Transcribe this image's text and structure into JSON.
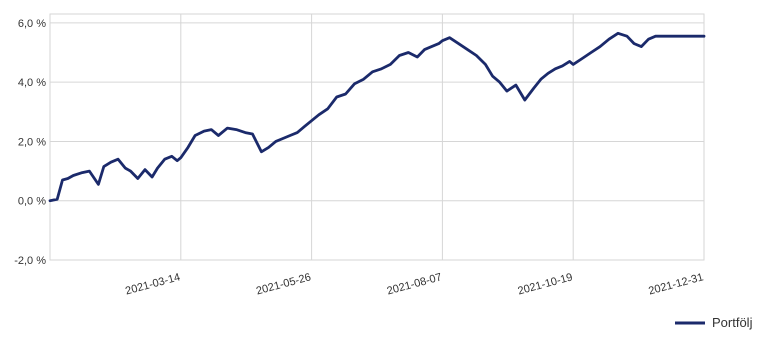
{
  "chart_data": {
    "type": "line",
    "grid": true,
    "legend_position": "bottom-right",
    "y_ticks": [
      {
        "value": 6,
        "label": "6,0 %"
      },
      {
        "value": 4,
        "label": "4,0 %"
      },
      {
        "value": 2,
        "label": "2,0 %"
      },
      {
        "value": 0,
        "label": "0,0 %"
      },
      {
        "value": -2,
        "label": "-2,0 %"
      }
    ],
    "x_ticks": [
      {
        "value": "2021-03-14",
        "label": "2021-03-14"
      },
      {
        "value": "2021-05-26",
        "label": "2021-05-26"
      },
      {
        "value": "2021-08-07",
        "label": "2021-08-07"
      },
      {
        "value": "2021-10-19",
        "label": "2021-10-19"
      },
      {
        "value": "2021-12-31",
        "label": "2021-12-31"
      }
    ],
    "xlim": [
      "2020-12-31",
      "2021-12-31"
    ],
    "ylim": [
      -2,
      6.3
    ],
    "series": [
      {
        "name": "Portfölj",
        "color": "#1b2a6b",
        "x": [
          "2020-12-31",
          "2021-01-04",
          "2021-01-07",
          "2021-01-10",
          "2021-01-13",
          "2021-01-18",
          "2021-01-22",
          "2021-01-27",
          "2021-01-30",
          "2021-02-03",
          "2021-02-07",
          "2021-02-11",
          "2021-02-14",
          "2021-02-18",
          "2021-02-22",
          "2021-02-26",
          "2021-03-01",
          "2021-03-05",
          "2021-03-09",
          "2021-03-12",
          "2021-03-14",
          "2021-03-18",
          "2021-03-22",
          "2021-03-27",
          "2021-03-31",
          "2021-04-04",
          "2021-04-09",
          "2021-04-14",
          "2021-04-19",
          "2021-04-23",
          "2021-04-28",
          "2021-05-02",
          "2021-05-06",
          "2021-05-10",
          "2021-05-14",
          "2021-05-18",
          "2021-05-22",
          "2021-05-26",
          "2021-05-30",
          "2021-06-04",
          "2021-06-09",
          "2021-06-14",
          "2021-06-19",
          "2021-06-24",
          "2021-06-29",
          "2021-07-04",
          "2021-07-09",
          "2021-07-14",
          "2021-07-19",
          "2021-07-24",
          "2021-07-28",
          "2021-08-01",
          "2021-08-05",
          "2021-08-07",
          "2021-08-11",
          "2021-08-16",
          "2021-08-21",
          "2021-08-26",
          "2021-08-31",
          "2021-09-04",
          "2021-09-08",
          "2021-09-12",
          "2021-09-17",
          "2021-09-22",
          "2021-09-27",
          "2021-10-01",
          "2021-10-05",
          "2021-10-09",
          "2021-10-13",
          "2021-10-17",
          "2021-10-19",
          "2021-10-24",
          "2021-10-29",
          "2021-11-03",
          "2021-11-08",
          "2021-11-13",
          "2021-11-18",
          "2021-11-22",
          "2021-11-26",
          "2021-11-30",
          "2021-12-04",
          "2021-12-09",
          "2021-12-14",
          "2021-12-19",
          "2021-12-24",
          "2021-12-31"
        ],
        "values": [
          0.0,
          0.05,
          0.7,
          0.75,
          0.85,
          0.95,
          1.0,
          0.55,
          1.15,
          1.3,
          1.4,
          1.1,
          1.0,
          0.75,
          1.05,
          0.8,
          1.1,
          1.4,
          1.5,
          1.35,
          1.45,
          1.8,
          2.2,
          2.35,
          2.4,
          2.2,
          2.45,
          2.4,
          2.3,
          2.25,
          1.65,
          1.8,
          2.0,
          2.1,
          2.2,
          2.3,
          2.5,
          2.7,
          2.9,
          3.1,
          3.5,
          3.6,
          3.95,
          4.1,
          4.35,
          4.45,
          4.6,
          4.9,
          5.0,
          4.85,
          5.1,
          5.2,
          5.3,
          5.4,
          5.5,
          5.3,
          5.1,
          4.9,
          4.6,
          4.2,
          4.0,
          3.7,
          3.9,
          3.4,
          3.8,
          4.1,
          4.3,
          4.45,
          4.55,
          4.7,
          4.6,
          4.8,
          5.0,
          5.2,
          5.45,
          5.65,
          5.55,
          5.3,
          5.2,
          5.45,
          5.55,
          5.55,
          5.55,
          5.55,
          5.55,
          5.55
        ]
      }
    ]
  }
}
